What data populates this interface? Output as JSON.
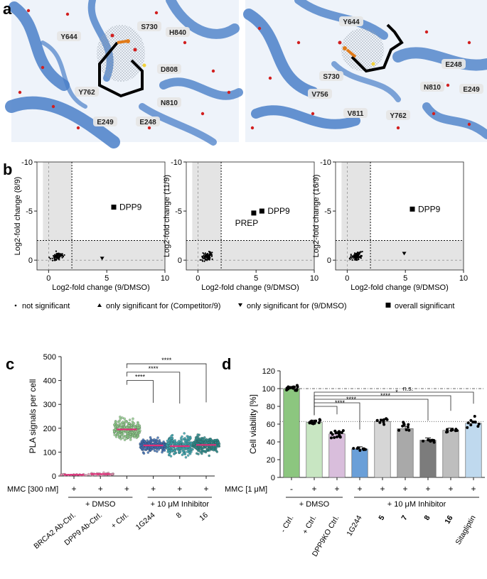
{
  "panel_letters": {
    "a": "a",
    "b": "b",
    "c": "c",
    "d": "d"
  },
  "panel_a": {
    "left_labels": [
      "Y644",
      "S730",
      "H840",
      "D808",
      "N810",
      "Y762",
      "E249",
      "E248"
    ],
    "right_labels": [
      "Y644",
      "E248",
      "S730",
      "N810",
      "E249",
      "V756",
      "V811",
      "Y762"
    ]
  },
  "legend_b": {
    "items": [
      {
        "marker": "dot",
        "label": "not significant"
      },
      {
        "marker": "triangle-up",
        "label": "only significant for (Competitor/9)"
      },
      {
        "marker": "triangle-down",
        "label": "only significant for (9/DMSO)"
      },
      {
        "marker": "square",
        "label": "overall significant"
      }
    ]
  },
  "chart_data": [
    {
      "panel": "b1",
      "type": "scatter",
      "xlabel": "Log2-fold change (9/DMSO)",
      "ylabel": "Log2-fold change (8/9)",
      "xlim": [
        -1,
        10
      ],
      "ylim": [
        1,
        -10
      ],
      "xticks": [
        "0",
        "5",
        "10"
      ],
      "yticks": [
        "-10",
        "-5",
        "0"
      ],
      "threshold_x": 2,
      "threshold_y": -2,
      "points_significant": [
        {
          "x": 5.6,
          "y": -5.4,
          "label": "DPP9"
        }
      ],
      "points_only_9_dmso": [
        {
          "x": 4.6,
          "y": -0.2
        }
      ]
    },
    {
      "panel": "b2",
      "type": "scatter",
      "xlabel": "Log2-fold change (9/DMSO)",
      "ylabel": "Log2-fold change (11/9)",
      "xlim": [
        -1,
        10
      ],
      "ylim": [
        1,
        -10
      ],
      "xticks": [
        "0",
        "5",
        "10"
      ],
      "yticks": [
        "-10",
        "-5",
        "0"
      ],
      "threshold_x": 2,
      "threshold_y": -2,
      "points_significant": [
        {
          "x": 5.5,
          "y": -5.0,
          "label": "DPP9"
        },
        {
          "x": 4.8,
          "y": -4.8,
          "label": "PREP"
        }
      ],
      "points_only_9_dmso": []
    },
    {
      "panel": "b3",
      "type": "scatter",
      "xlabel": "Log2-fold change (9/DMSO)",
      "ylabel": "Log2-fold change (16/9)",
      "xlim": [
        -1,
        10
      ],
      "ylim": [
        1,
        -10
      ],
      "xticks": [
        "0",
        "5",
        "10"
      ],
      "yticks": [
        "-10",
        "-5",
        "0"
      ],
      "threshold_x": 2,
      "threshold_y": -2,
      "points_significant": [
        {
          "x": 5.6,
          "y": -5.2,
          "label": "DPP9"
        }
      ],
      "points_only_9_dmso": [
        {
          "x": 4.9,
          "y": -0.7
        }
      ]
    },
    {
      "panel": "c",
      "type": "bar",
      "ylabel": "PLA signals per cell",
      "ylim": [
        0,
        500
      ],
      "yticks": [
        "0",
        "100",
        "200",
        "300",
        "400",
        "500"
      ],
      "categories": [
        "BRCA2 Ab-Ctrl.",
        "DPP9 Ab-Ctrl.",
        "+ Ctrl.",
        "1G244",
        "8",
        "16"
      ],
      "means": [
        5,
        8,
        195,
        128,
        125,
        130
      ],
      "colors": [
        "#e58fb0",
        "#e58fb0",
        "#8fcf8a",
        "#3d6fb5",
        "#39a6b0",
        "#2a8c8c"
      ],
      "treatment_label": "MMC [300 nM]",
      "treatment_marks": [
        "+",
        "+",
        "+",
        "+",
        "+",
        "+"
      ],
      "group1_label": "+ DMSO",
      "group2_label": "+ 10 μM Inhibitor",
      "significance": [
        {
          "from": 2,
          "to": 3,
          "label": "****"
        },
        {
          "from": 2,
          "to": 4,
          "label": "****"
        },
        {
          "from": 2,
          "to": 5,
          "label": "****"
        }
      ]
    },
    {
      "panel": "d",
      "type": "bar",
      "ylabel": "Cell viability [%]",
      "ylim": [
        0,
        120
      ],
      "yticks": [
        "0",
        "20",
        "40",
        "60",
        "80",
        "100",
        "120"
      ],
      "categories": [
        "- Ctrl.",
        "+ Ctrl.",
        "DPP9KO Ctrl.",
        "1G244",
        "5",
        "7",
        "8",
        "16",
        "Sitagliptin"
      ],
      "values": [
        100,
        62,
        49,
        32,
        63,
        55,
        42,
        53,
        61
      ],
      "colors": [
        "#8cc67f",
        "#c8e6c2",
        "#d9bedc",
        "#6a9fd8",
        "#d6d6d6",
        "#a9a9a9",
        "#7c7c7c",
        "#bebebe",
        "#bfd9ee"
      ],
      "reference_lines": [
        100,
        63
      ],
      "treatment_label": "MMC [1 μM]",
      "treatment_marks": [
        "-",
        "+",
        "+",
        "+",
        "+",
        "+",
        "+",
        "+",
        "+"
      ],
      "group1_label": "+ DMSO",
      "group2_label": "+ 10 μM Inhibitor",
      "significance": [
        {
          "from": 1,
          "to": 2,
          "label": "****"
        },
        {
          "from": 1,
          "to": 3,
          "label": "****"
        },
        {
          "from": 1,
          "to": 6,
          "label": "****"
        },
        {
          "from": 1,
          "to": 7,
          "label": "*"
        },
        {
          "from": 1,
          "to": 8,
          "label": "n.s."
        }
      ]
    }
  ]
}
